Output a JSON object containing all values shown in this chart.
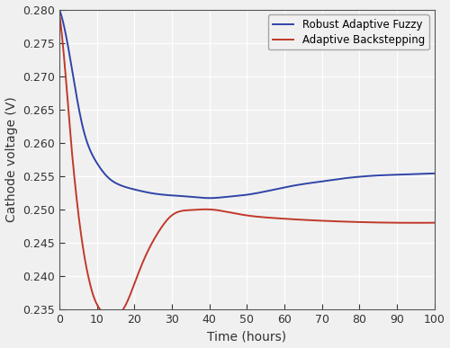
{
  "title": "",
  "xlabel": "Time (hours)",
  "ylabel": "Cathode voltage (V)",
  "xlim": [
    0,
    100
  ],
  "ylim": [
    0.235,
    0.28
  ],
  "xticks": [
    0,
    10,
    20,
    30,
    40,
    50,
    60,
    70,
    80,
    90,
    100
  ],
  "yticks": [
    0.235,
    0.24,
    0.245,
    0.25,
    0.255,
    0.26,
    0.265,
    0.27,
    0.275,
    0.28
  ],
  "blue_label": "Robust Adaptive Fuzzy",
  "red_label": "Adaptive Backstepping",
  "blue_color": "#3044a8",
  "red_color": "#c0392b",
  "background_color": "#f0f0f0",
  "plot_bg_color": "#f0f0f0",
  "grid_color": "#ffffff",
  "blue_x": [
    0,
    2,
    4,
    6,
    8,
    10,
    13,
    16,
    20,
    25,
    30,
    35,
    40,
    45,
    50,
    55,
    60,
    65,
    70,
    75,
    80,
    85,
    90,
    95,
    100
  ],
  "blue_y": [
    0.28,
    0.2755,
    0.269,
    0.263,
    0.2592,
    0.257,
    0.2548,
    0.2537,
    0.253,
    0.2524,
    0.2521,
    0.2519,
    0.2517,
    0.2519,
    0.2522,
    0.2527,
    0.2533,
    0.2538,
    0.2542,
    0.2546,
    0.2549,
    0.2551,
    0.2552,
    0.2553,
    0.2554
  ],
  "red_x": [
    0,
    1,
    2,
    3,
    4,
    5,
    6,
    7,
    8,
    9,
    10,
    11,
    12,
    13,
    14,
    15,
    16,
    18,
    20,
    23,
    26,
    30,
    35,
    40,
    45,
    50,
    55,
    60,
    70,
    80,
    90,
    100
  ],
  "red_y": [
    0.2795,
    0.2745,
    0.268,
    0.261,
    0.255,
    0.2498,
    0.2455,
    0.242,
    0.2393,
    0.2372,
    0.2358,
    0.2349,
    0.2343,
    0.2338,
    0.2336,
    0.2337,
    0.2342,
    0.236,
    0.2388,
    0.243,
    0.2462,
    0.2491,
    0.2499,
    0.25,
    0.2496,
    0.2491,
    0.2488,
    0.2486,
    0.2483,
    0.2481,
    0.248,
    0.248
  ]
}
